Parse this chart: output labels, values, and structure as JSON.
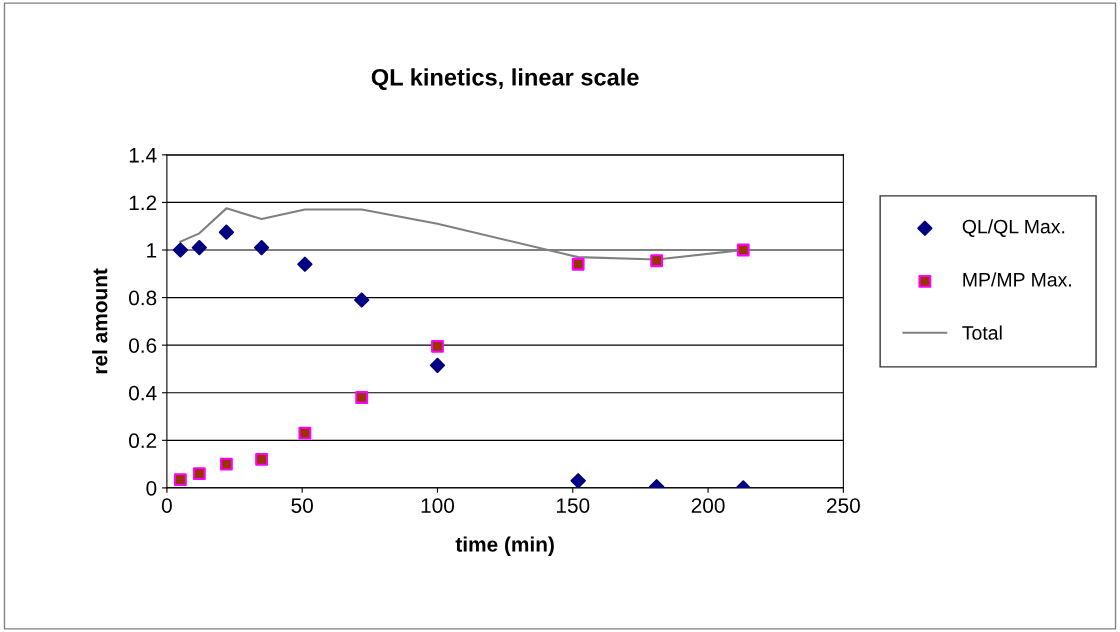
{
  "chart_data": {
    "type": "scatter",
    "title": "QL kinetics, linear scale",
    "xlabel": "time (min)",
    "ylabel": "rel amount",
    "x": [
      5,
      12,
      22,
      35,
      51,
      72,
      100,
      152,
      181,
      213
    ],
    "series": [
      {
        "name": "QL/QL Max.",
        "color": "#000080",
        "marker": "diamond",
        "values": [
          1.0,
          1.01,
          1.075,
          1.01,
          0.94,
          0.79,
          0.515,
          0.03,
          0.005,
          0.0
        ]
      },
      {
        "name": "MP/MP Max.",
        "color": "#993300",
        "marker": "square",
        "values": [
          0.035,
          0.06,
          0.1,
          0.12,
          0.23,
          0.38,
          0.595,
          0.94,
          0.955,
          1.0
        ]
      },
      {
        "name": "Total",
        "type": "line",
        "color": "#808080",
        "marker": "none",
        "values": [
          1.035,
          1.07,
          1.175,
          1.13,
          1.17,
          1.17,
          1.11,
          0.97,
          0.96,
          1.0
        ]
      }
    ],
    "xlim": [
      0,
      250
    ],
    "xticks": [
      0,
      50,
      100,
      150,
      200,
      250
    ],
    "ylim": [
      0,
      1.4
    ],
    "yticks": [
      0,
      0.2,
      0.4,
      0.6,
      0.8,
      1,
      1.2,
      1.4
    ],
    "grid": "y",
    "legend": "right"
  }
}
